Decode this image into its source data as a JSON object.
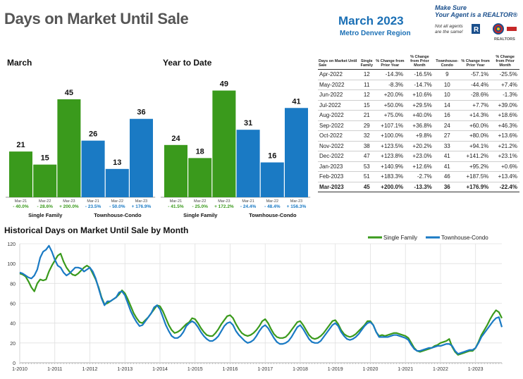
{
  "header": {
    "title": "Days on Market Until Sale",
    "date": "March 2023",
    "region": "Metro Denver Region",
    "brand_line1": "Make Sure",
    "brand_line2": "Your Agent is a REALTOR®",
    "brand_note1": "Not all agents",
    "brand_note2": "are the same!",
    "brand_mark": "REALTORS"
  },
  "colors": {
    "single_family": "#3a9a1c",
    "townhouse": "#1a7ac4"
  },
  "chart_data": [
    {
      "type": "bar",
      "title": "March",
      "categories": [
        "Mar-21",
        "Mar-22",
        "Mar-23",
        "Mar-21",
        "Mar-22",
        "Mar-23"
      ],
      "groups": [
        "Single Family",
        "Townhouse-Condo"
      ],
      "values": [
        21,
        15,
        45,
        26,
        13,
        36
      ],
      "changes": [
        "- 40.0%",
        "- 28.6%",
        "+ 200.0%",
        "- 23.5%",
        "- 50.0%",
        "+ 176.9%"
      ],
      "ylim": [
        0,
        55
      ]
    },
    {
      "type": "bar",
      "title": "Year to Date",
      "categories": [
        "Mar-21",
        "Mar-22",
        "Mar-23",
        "Mar-21",
        "Mar-22",
        "Mar-23"
      ],
      "groups": [
        "Single Family",
        "Townhouse-Condo"
      ],
      "values": [
        24,
        18,
        49,
        31,
        16,
        41
      ],
      "changes": [
        "- 41.5%",
        "- 25.0%",
        "+ 172.2%",
        "- 24.4%",
        "- 48.4%",
        "+ 156.3%"
      ],
      "ylim": [
        0,
        55
      ]
    },
    {
      "type": "table",
      "columns": [
        "Days on Market Until Sale",
        "Single Family",
        "% Change from Prior Year",
        "% Change from Prior Month",
        "Townhouse-Condo",
        "% Change from Prior Year",
        "% Change from Prior Month"
      ],
      "rows": [
        [
          "Apr-2022",
          "12",
          "-14.3%",
          "-16.5%",
          "9",
          "-57.1%",
          "-25.5%"
        ],
        [
          "May-2022",
          "11",
          "-8.3%",
          "-14.7%",
          "10",
          "-44.4%",
          "+7.4%"
        ],
        [
          "Jun-2022",
          "12",
          "+20.0%",
          "+10.6%",
          "10",
          "-28.6%",
          "-1.3%"
        ],
        [
          "Jul-2022",
          "15",
          "+50.0%",
          "+29.5%",
          "14",
          "+7.7%",
          "+39.0%"
        ],
        [
          "Aug-2022",
          "21",
          "+75.0%",
          "+40.0%",
          "16",
          "+14.3%",
          "+18.6%"
        ],
        [
          "Sep-2022",
          "29",
          "+107.1%",
          "+36.8%",
          "24",
          "+60.0%",
          "+46.3%"
        ],
        [
          "Oct-2022",
          "32",
          "+100.0%",
          "+9.8%",
          "27",
          "+80.0%",
          "+13.6%"
        ],
        [
          "Nov-2022",
          "38",
          "+123.5%",
          "+20.2%",
          "33",
          "+94.1%",
          "+21.2%"
        ],
        [
          "Dec-2022",
          "47",
          "+123.8%",
          "+23.0%",
          "41",
          "+141.2%",
          "+23.1%"
        ],
        [
          "Jan-2023",
          "53",
          "+140.9%",
          "+12.6%",
          "41",
          "+95.2%",
          "+0.6%"
        ],
        [
          "Feb-2023",
          "51",
          "+183.3%",
          "-2.7%",
          "46",
          "+187.5%",
          "+13.4%"
        ],
        [
          "Mar-2023",
          "45",
          "+200.0%",
          "-13.3%",
          "36",
          "+176.9%",
          "-22.4%"
        ]
      ]
    },
    {
      "type": "line",
      "title": "Historical Days on Market Until Sale by Month",
      "ylim": [
        0,
        120
      ],
      "yticks": [
        0,
        20,
        40,
        60,
        80,
        100,
        120
      ],
      "xticks": [
        "1-2010",
        "1-2011",
        "1-2012",
        "1-2013",
        "1-2014",
        "1-2015",
        "1-2016",
        "1-2017",
        "1-2018",
        "1-2019",
        "1-2020",
        "1-2021",
        "1-2022",
        "1-2023"
      ],
      "series": [
        {
          "name": "Single Family",
          "values": [
            90,
            89,
            87,
            82,
            76,
            72,
            80,
            84,
            83,
            84,
            92,
            98,
            103,
            108,
            110,
            102,
            96,
            92,
            89,
            88,
            90,
            93,
            96,
            98,
            96,
            90,
            84,
            76,
            66,
            59,
            60,
            62,
            64,
            66,
            69,
            73,
            70,
            64,
            57,
            50,
            45,
            41,
            40,
            43,
            46,
            50,
            54,
            58,
            57,
            52,
            45,
            38,
            33,
            30,
            31,
            33,
            36,
            39,
            41,
            45,
            44,
            40,
            35,
            31,
            28,
            27,
            27,
            30,
            34,
            39,
            43,
            47,
            48,
            45,
            39,
            34,
            30,
            28,
            27,
            28,
            30,
            33,
            37,
            42,
            44,
            40,
            34,
            29,
            26,
            25,
            25,
            26,
            29,
            33,
            37,
            41,
            42,
            38,
            33,
            28,
            25,
            24,
            25,
            27,
            30,
            34,
            38,
            42,
            43,
            39,
            33,
            29,
            27,
            26,
            27,
            29,
            32,
            35,
            38,
            42,
            42,
            38,
            31,
            27,
            28,
            27,
            28,
            29,
            30,
            30,
            29,
            28,
            27,
            25,
            20,
            15,
            12,
            11,
            12,
            13,
            14,
            15,
            17,
            18,
            20,
            21,
            22,
            24,
            16,
            11,
            8,
            9,
            10,
            11,
            12,
            12,
            15,
            21,
            28,
            33,
            38,
            44,
            49,
            53,
            51,
            45
          ]
        },
        {
          "name": "Townhouse-Condo",
          "values": [
            91,
            90,
            88,
            86,
            85,
            88,
            94,
            106,
            112,
            114,
            118,
            112,
            104,
            98,
            96,
            91,
            88,
            90,
            93,
            96,
            96,
            95,
            92,
            94,
            96,
            92,
            85,
            75,
            65,
            58,
            62,
            62,
            64,
            66,
            71,
            72,
            68,
            60,
            52,
            46,
            41,
            37,
            38,
            42,
            46,
            50,
            56,
            58,
            54,
            46,
            38,
            32,
            27,
            25,
            25,
            27,
            31,
            37,
            40,
            42,
            40,
            36,
            31,
            27,
            24,
            22,
            22,
            24,
            27,
            32,
            37,
            40,
            41,
            38,
            32,
            28,
            25,
            22,
            20,
            21,
            23,
            27,
            32,
            36,
            38,
            35,
            30,
            25,
            21,
            19,
            19,
            20,
            22,
            26,
            31,
            36,
            38,
            34,
            29,
            24,
            21,
            20,
            20,
            22,
            26,
            30,
            34,
            38,
            40,
            37,
            31,
            27,
            24,
            23,
            24,
            26,
            29,
            33,
            37,
            40,
            41,
            38,
            31,
            26,
            26,
            26,
            26,
            27,
            28,
            28,
            27,
            26,
            25,
            23,
            18,
            14,
            12,
            12,
            13,
            14,
            15,
            15,
            16,
            17,
            17,
            18,
            19,
            19,
            17,
            12,
            9,
            10,
            11,
            12,
            13,
            13,
            15,
            20,
            26,
            30,
            34,
            38,
            42,
            45,
            46,
            36
          ]
        }
      ]
    }
  ]
}
